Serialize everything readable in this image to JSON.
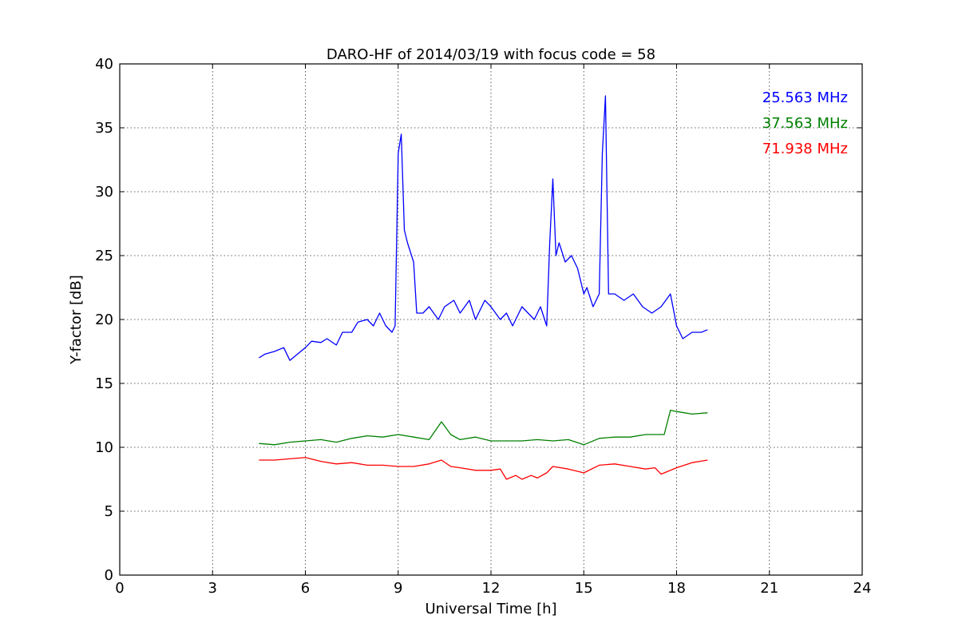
{
  "chart_data": {
    "type": "line",
    "title": "DARO-HF of 2014/03/19 with focus code = 58",
    "xlabel": "Universal Time [h]",
    "ylabel": "Y-factor [dB]",
    "xlim": [
      0,
      24
    ],
    "ylim": [
      0,
      40
    ],
    "xticks": [
      0,
      3,
      6,
      9,
      12,
      15,
      18,
      21,
      24
    ],
    "yticks": [
      0,
      5,
      10,
      15,
      20,
      25,
      30,
      35,
      40
    ],
    "xtick_labels": [
      "0",
      "3",
      "6",
      "9",
      "12",
      "15",
      "18",
      "21",
      "24"
    ],
    "ytick_labels": [
      "0",
      "5",
      "10",
      "15",
      "20",
      "25",
      "30",
      "35",
      "40"
    ],
    "grid": true,
    "legend_position": "top-right",
    "series": [
      {
        "name": "25.563 MHz",
        "color": "#0000ff",
        "x": [
          4.5,
          4.7,
          5.0,
          5.3,
          5.5,
          5.7,
          6.0,
          6.2,
          6.5,
          6.7,
          7.0,
          7.2,
          7.5,
          7.7,
          8.0,
          8.2,
          8.4,
          8.6,
          8.8,
          8.9,
          9.0,
          9.1,
          9.2,
          9.3,
          9.5,
          9.6,
          9.8,
          10.0,
          10.3,
          10.5,
          10.8,
          11.0,
          11.3,
          11.5,
          11.8,
          12.0,
          12.3,
          12.5,
          12.7,
          13.0,
          13.2,
          13.4,
          13.6,
          13.8,
          13.9,
          14.0,
          14.1,
          14.2,
          14.4,
          14.6,
          14.8,
          15.0,
          15.1,
          15.3,
          15.5,
          15.6,
          15.7,
          15.8,
          16.0,
          16.3,
          16.6,
          16.9,
          17.2,
          17.5,
          17.8,
          18.0,
          18.2,
          18.5,
          18.8,
          19.0
        ],
        "y": [
          17.0,
          17.3,
          17.5,
          17.8,
          16.8,
          17.2,
          17.8,
          18.3,
          18.2,
          18.5,
          18.0,
          19.0,
          19.0,
          19.8,
          20.0,
          19.5,
          20.5,
          19.5,
          19.0,
          19.5,
          33.0,
          34.5,
          27.0,
          26.0,
          24.5,
          20.5,
          20.5,
          21.0,
          20.0,
          21.0,
          21.5,
          20.5,
          21.5,
          20.0,
          21.5,
          21.0,
          20.0,
          20.5,
          19.5,
          21.0,
          20.5,
          20.0,
          21.0,
          19.5,
          26.0,
          31.0,
          25.0,
          26.0,
          24.5,
          25.0,
          24.0,
          22.0,
          22.5,
          21.0,
          22.0,
          33.0,
          37.5,
          22.0,
          22.0,
          21.5,
          22.0,
          21.0,
          20.5,
          21.0,
          22.0,
          19.5,
          18.5,
          19.0,
          19.0,
          19.2
        ]
      },
      {
        "name": "37.563 MHz",
        "color": "#008000",
        "x": [
          4.5,
          5.0,
          5.5,
          6.0,
          6.5,
          7.0,
          7.5,
          8.0,
          8.5,
          9.0,
          9.5,
          10.0,
          10.4,
          10.7,
          11.0,
          11.5,
          12.0,
          12.5,
          13.0,
          13.5,
          14.0,
          14.5,
          15.0,
          15.5,
          16.0,
          16.5,
          17.0,
          17.3,
          17.6,
          17.8,
          18.0,
          18.5,
          19.0
        ],
        "y": [
          10.3,
          10.2,
          10.4,
          10.5,
          10.6,
          10.4,
          10.7,
          10.9,
          10.8,
          11.0,
          10.8,
          10.6,
          12.0,
          11.0,
          10.6,
          10.8,
          10.5,
          10.5,
          10.5,
          10.6,
          10.5,
          10.6,
          10.2,
          10.7,
          10.8,
          10.8,
          11.0,
          11.0,
          11.0,
          12.9,
          12.8,
          12.6,
          12.7
        ]
      },
      {
        "name": "71.938 MHz",
        "color": "#ff0000",
        "x": [
          4.5,
          5.0,
          5.5,
          6.0,
          6.5,
          7.0,
          7.5,
          8.0,
          8.5,
          9.0,
          9.5,
          10.0,
          10.4,
          10.7,
          11.0,
          11.5,
          12.0,
          12.3,
          12.5,
          12.8,
          13.0,
          13.3,
          13.5,
          13.8,
          14.0,
          14.5,
          15.0,
          15.5,
          16.0,
          16.5,
          17.0,
          17.3,
          17.5,
          18.0,
          18.5,
          19.0
        ],
        "y": [
          9.0,
          9.0,
          9.1,
          9.2,
          8.9,
          8.7,
          8.8,
          8.6,
          8.6,
          8.5,
          8.5,
          8.7,
          9.0,
          8.5,
          8.4,
          8.2,
          8.2,
          8.3,
          7.5,
          7.8,
          7.5,
          7.8,
          7.6,
          8.0,
          8.5,
          8.3,
          8.0,
          8.6,
          8.7,
          8.5,
          8.3,
          8.4,
          7.9,
          8.4,
          8.8,
          9.0
        ]
      }
    ]
  }
}
